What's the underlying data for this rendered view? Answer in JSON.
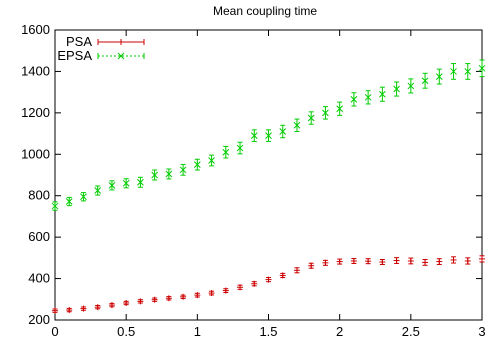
{
  "chart_data": {
    "type": "scatter",
    "title": "Mean coupling time",
    "xlabel": "",
    "ylabel": "",
    "xlim": [
      0,
      3
    ],
    "ylim": [
      200,
      1600
    ],
    "x_ticks": [
      0,
      0.5,
      1,
      1.5,
      2,
      2.5,
      3
    ],
    "x_tick_labels": [
      "0",
      "0.5",
      "1",
      "1.5",
      "2",
      "2.5",
      "3"
    ],
    "y_ticks": [
      200,
      400,
      600,
      800,
      1000,
      1200,
      1400,
      1600
    ],
    "y_tick_labels": [
      "200",
      "400",
      "600",
      "800",
      "1000",
      "1200",
      "1400",
      "1600"
    ],
    "grid": false,
    "legend_position": "top-left",
    "x": [
      0,
      0.1,
      0.2,
      0.3,
      0.4,
      0.5,
      0.6,
      0.7,
      0.8,
      0.9,
      1.0,
      1.1,
      1.2,
      1.3,
      1.4,
      1.5,
      1.6,
      1.7,
      1.8,
      1.9,
      2.0,
      2.1,
      2.2,
      2.3,
      2.4,
      2.5,
      2.6,
      2.7,
      2.8,
      2.9,
      3.0
    ],
    "series": [
      {
        "name": "PSA",
        "marker": "plus",
        "color": "#cc0000",
        "values": [
          245,
          248,
          255,
          262,
          272,
          282,
          290,
          298,
          305,
          312,
          320,
          330,
          342,
          358,
          375,
          395,
          415,
          440,
          462,
          476,
          482,
          485,
          484,
          480,
          487,
          485,
          478,
          482,
          490,
          485,
          495
        ],
        "errors": [
          8,
          8,
          8,
          8,
          8,
          8,
          8,
          8,
          8,
          8,
          9,
          9,
          9,
          10,
          10,
          10,
          10,
          12,
          12,
          12,
          12,
          12,
          12,
          12,
          14,
          14,
          14,
          14,
          15,
          15,
          15
        ]
      },
      {
        "name": "EPSA",
        "marker": "x",
        "color": "#00cc00",
        "values": [
          750,
          772,
          795,
          825,
          850,
          860,
          865,
          900,
          905,
          925,
          950,
          970,
          1010,
          1030,
          1090,
          1090,
          1110,
          1140,
          1175,
          1200,
          1220,
          1265,
          1275,
          1290,
          1315,
          1330,
          1355,
          1375,
          1400,
          1400,
          1415
        ],
        "errors": [
          20,
          20,
          20,
          22,
          22,
          22,
          24,
          24,
          24,
          26,
          26,
          26,
          28,
          28,
          28,
          28,
          30,
          30,
          30,
          30,
          32,
          32,
          32,
          34,
          34,
          34,
          36,
          36,
          38,
          38,
          40
        ]
      }
    ]
  }
}
